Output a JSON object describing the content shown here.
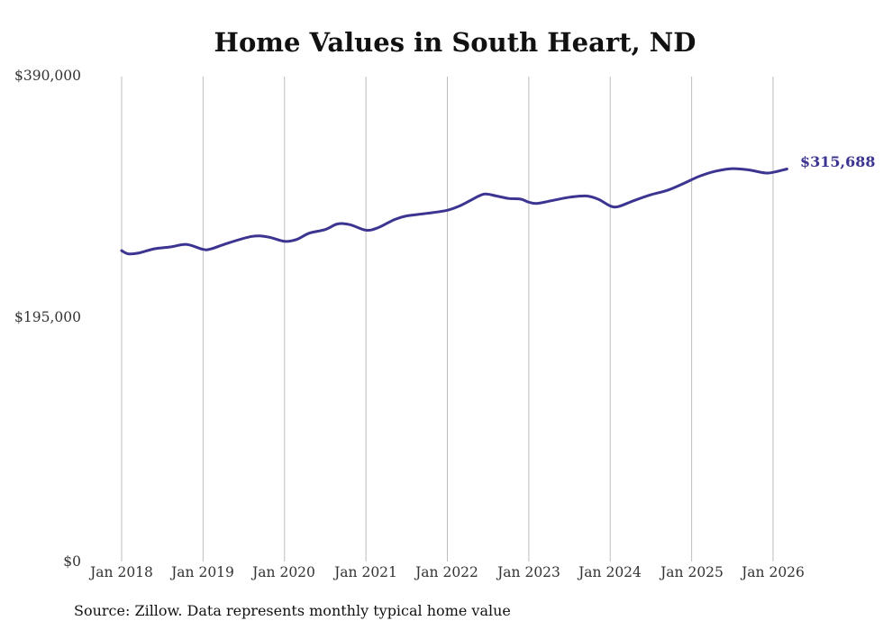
{
  "chart_data": {
    "type": "line",
    "title": "Home Values in South Heart, ND",
    "xlabel": "",
    "ylabel": "",
    "ylim": [
      0,
      390000
    ],
    "yticks": [
      "$390,000",
      "$195,000",
      "$0"
    ],
    "yvalues": [
      390000,
      195000,
      0
    ],
    "xticks": [
      "Jan 2018",
      "Jan 2019",
      "Jan 2020",
      "Jan 2021",
      "Jan 2022",
      "Jan 2023",
      "Jan 2024",
      "Jan 2025",
      "Jan 2026"
    ],
    "xrange": [
      2018,
      2026
    ],
    "series": [
      {
        "name": "Typical home value",
        "color": "#3b3591",
        "x": [
          2018.0,
          2018.08,
          2018.2,
          2018.4,
          2018.6,
          2018.8,
          2019.0,
          2019.1,
          2019.3,
          2019.6,
          2019.8,
          2020.0,
          2020.15,
          2020.3,
          2020.5,
          2020.65,
          2020.8,
          2021.0,
          2021.15,
          2021.35,
          2021.5,
          2021.75,
          2022.0,
          2022.15,
          2022.3,
          2022.45,
          2022.6,
          2022.75,
          2022.9,
          2023.0,
          2023.1,
          2023.3,
          2023.5,
          2023.7,
          2023.85,
          2024.0,
          2024.1,
          2024.3,
          2024.5,
          2024.7,
          2024.9,
          2025.1,
          2025.3,
          2025.5,
          2025.7,
          2025.9,
          2026.0,
          2026.17
        ],
        "values": [
          250000,
          247500,
          248000,
          251500,
          253000,
          255000,
          251000,
          251500,
          256000,
          261500,
          261000,
          257500,
          259000,
          264000,
          267000,
          271500,
          271000,
          266500,
          268500,
          275000,
          278000,
          280000,
          282500,
          286000,
          291000,
          295500,
          294000,
          292000,
          291500,
          289000,
          288000,
          290500,
          293000,
          294000,
          291500,
          286000,
          285500,
          290500,
          295000,
          298500,
          304000,
          310000,
          314000,
          316000,
          315000,
          312500,
          313000,
          315688
        ]
      }
    ],
    "end_label": "$315,688",
    "grid": "vertical",
    "source": "Source: Zillow. Data represents monthly typical home value"
  }
}
